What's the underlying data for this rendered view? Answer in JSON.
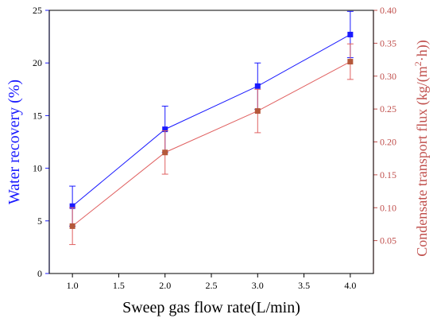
{
  "chart_data": {
    "type": "line",
    "xlabel": "Sweep gas flow rate(L/min)",
    "ylabel_left": "Water recovery (%)",
    "ylabel_right_main": "Condensate transport flux (kg/(m",
    "ylabel_right_sup": "2",
    "ylabel_right_tail": "·h))",
    "xlim": [
      0.75,
      4.25
    ],
    "ylim_left": [
      0,
      25
    ],
    "ylim_right": [
      0.0,
      0.4
    ],
    "x_ticks": [
      1.0,
      1.5,
      2.0,
      2.5,
      3.0,
      3.5,
      4.0
    ],
    "x_tick_labels": [
      "1.0",
      "1.5",
      "2.0",
      "2.5",
      "3.0",
      "3.5",
      "4.0"
    ],
    "y_left_ticks": [
      0,
      5,
      10,
      15,
      20,
      25
    ],
    "y_left_tick_labels": [
      "0",
      "5",
      "10",
      "15",
      "20",
      "25"
    ],
    "y_right_ticks": [
      0.05,
      0.1,
      0.15,
      0.2,
      0.25,
      0.3,
      0.35,
      0.4
    ],
    "y_right_tick_labels": [
      "0.05",
      "0.10",
      "0.15",
      "0.20",
      "0.25",
      "0.30",
      "0.35",
      "0.40"
    ],
    "series": [
      {
        "axis": "left",
        "color": "#1a1aff",
        "x": [
          1.0,
          2.0,
          3.0,
          4.0
        ],
        "y": [
          6.4,
          13.7,
          17.8,
          22.7
        ],
        "err": [
          1.9,
          2.2,
          2.2,
          2.2
        ]
      },
      {
        "axis": "right",
        "color": "#e06060",
        "marker_color": "#b5583a",
        "x": [
          1.0,
          2.0,
          3.0,
          4.0
        ],
        "y": [
          0.072,
          0.184,
          0.247,
          0.322
        ],
        "err": [
          0.028,
          0.033,
          0.033,
          0.027
        ]
      }
    ],
    "colors": {
      "left_axis": "#1a1aff",
      "right_axis": "#c0504d",
      "frame": "#000000"
    }
  }
}
